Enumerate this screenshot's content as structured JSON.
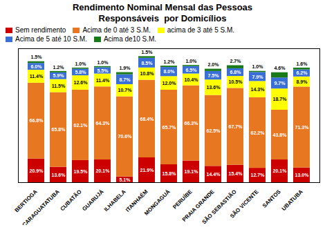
{
  "chart_data": {
    "type": "bar",
    "stacked": true,
    "title": "Rendimento Nominal Mensal das Pessoas\nResponsáveis  por Domicílios",
    "categories": [
      "BERTIOGA",
      "CARAGUATATUBA",
      "CUBATÃO",
      "GUARUJÁ",
      "ILHABELA",
      "ITANHAÉM",
      "MONGAGUÁ",
      "PERUÍBE",
      "PRAIA GRANDE",
      "SÃO SEBASTIÃO",
      "SÃO VICENTE",
      "SANTOS",
      "UBATUBA"
    ],
    "series": [
      {
        "name": "Sem rendimento",
        "color": "#cc0000",
        "values": [
          20.9,
          13.6,
          19.5,
          20.1,
          5.1,
          21.9,
          15.8,
          19.1,
          14.4,
          15.4,
          12.7,
          20.1,
          13.0
        ],
        "value_labels": [
          "20.9%",
          "13.6%",
          "19.5%",
          "20.1%",
          "5.1%",
          "21.9%",
          "15.8%",
          "19.1%",
          "14.4%",
          "15.4%",
          "12.7%",
          "20.1%",
          "13.0%"
        ]
      },
      {
        "name": "Acima de 0 até 3 S.M.",
        "color": "#e87722",
        "values": [
          66.8,
          65.8,
          62.1,
          64.3,
          70.6,
          68.4,
          65.7,
          66.3,
          62.5,
          67.7,
          62.2,
          43.8,
          71.3
        ],
        "value_labels": [
          "66.8%",
          "65.8%",
          "62.1%",
          "64.3%",
          "70.6%",
          "68.4%",
          "65.7%",
          "66.3%",
          "62.5%",
          "67.7%",
          "62.2%",
          "43.8%",
          "71.3%"
        ]
      },
      {
        "name": "acima de 3 até 5 S.M.",
        "color": "#ffff00",
        "values": [
          11.4,
          11.5,
          12.6,
          11.4,
          10.7,
          10.8,
          12.0,
          10.4,
          13.6,
          10.5,
          14.3,
          18.7,
          8.9
        ],
        "value_labels": [
          "11.4%",
          "11.5%",
          "12.6%",
          "11.4%",
          "10.7%",
          "10.8%",
          "12.0%",
          "10.4%",
          "13.6%",
          "10.5%",
          "14.3%",
          "18.7%",
          "8.9%"
        ]
      },
      {
        "name": "Acima de 5 até 10 S.M.",
        "color": "#3a6fd8",
        "values": [
          6.0,
          5.9,
          5.8,
          5.5,
          8.7,
          8.5,
          8.0,
          6.5,
          7.5,
          6.8,
          7.9,
          9.7,
          6.2
        ],
        "value_labels": [
          "6.0%",
          "5.9%",
          "5.8%",
          "5.5%",
          "8.7%",
          "8.5%",
          "8.0%",
          "6.5%",
          "7.5%",
          "6.8%",
          "7.9%",
          "9.7%",
          "6.2%"
        ]
      },
      {
        "name": "Acima de10 S.M.",
        "color": "#1a7a1a",
        "values": [
          1.5,
          1.2,
          1.0,
          1.0,
          1.9,
          1.5,
          1.2,
          1.0,
          2.0,
          2.7,
          1.0,
          4.6,
          1.6
        ],
        "value_labels": [
          "1.5%",
          "1.2%",
          "1.0%",
          "1.0%",
          "1.9%",
          "1.5%",
          "1.2%",
          "1.0%",
          "2.0%",
          "2.7%",
          "1.0%",
          "4.6%",
          "1.6%"
        ]
      }
    ],
    "ylim": [
      0,
      118
    ],
    "tick_labels": "x",
    "data_labels": true,
    "grid": false,
    "legend": "top"
  }
}
